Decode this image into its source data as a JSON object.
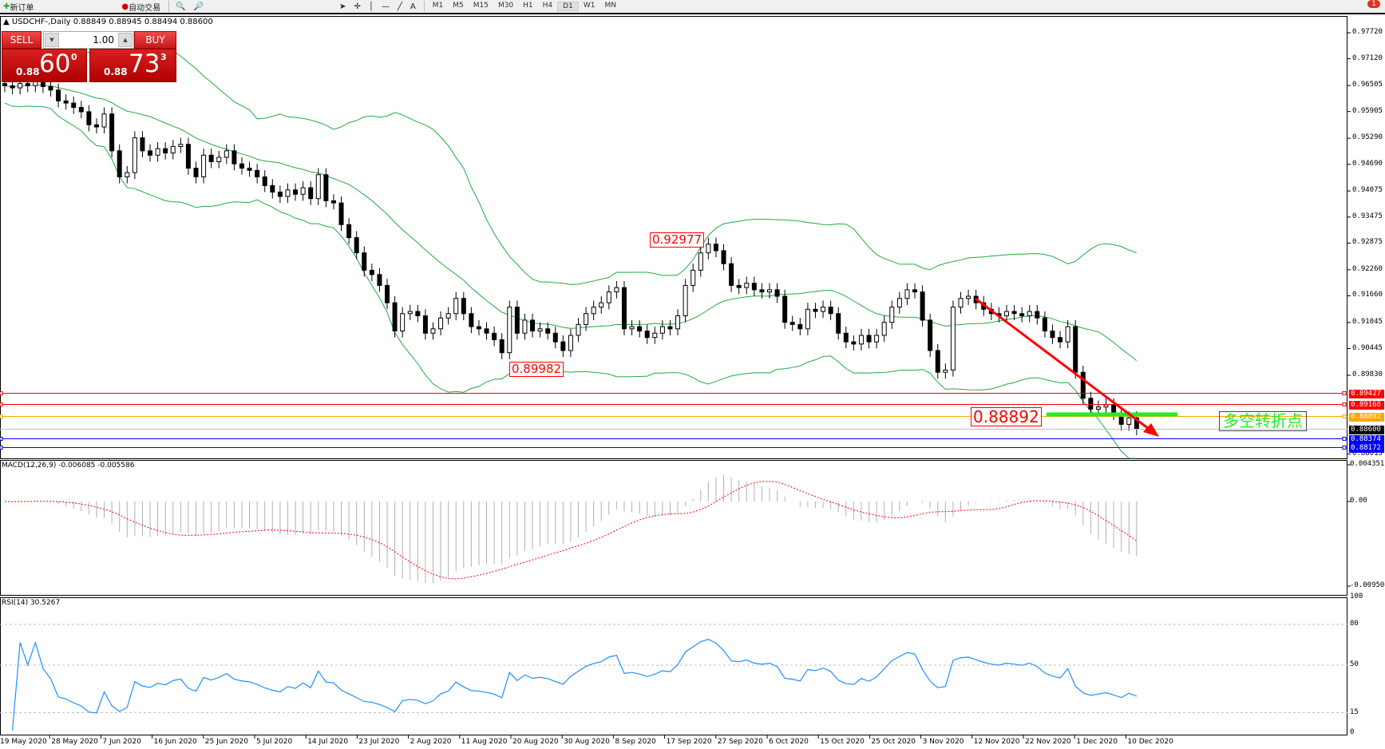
{
  "toolbar": {
    "new_order": "新订单",
    "auto_trading": "自动交易",
    "timeframes": [
      "M1",
      "M5",
      "M15",
      "M30",
      "H1",
      "H4",
      "D1",
      "W1",
      "MN"
    ],
    "active_timeframe": "D1",
    "notification_count": "1"
  },
  "chart": {
    "header": "USDCHF-,Daily  0.88849 0.88945 0.88494 0.88600",
    "symbol": "USDCHF-",
    "period": "Daily",
    "closes": [
      0.965,
      0.9645,
      0.9655,
      0.965,
      0.966,
      0.9648,
      0.964,
      0.9615,
      0.961,
      0.96,
      0.959,
      0.956,
      0.9555,
      0.9585,
      0.95,
      0.944,
      0.945,
      0.953,
      0.95,
      0.949,
      0.9505,
      0.9495,
      0.951,
      0.9515,
      0.946,
      0.944,
      0.949,
      0.9475,
      0.9485,
      0.95,
      0.947,
      0.946,
      0.9455,
      0.944,
      0.942,
      0.9405,
      0.9395,
      0.941,
      0.94,
      0.9415,
      0.939,
      0.9445,
      0.9385,
      0.938,
      0.933,
      0.93,
      0.9265,
      0.9225,
      0.9215,
      0.919,
      0.915,
      0.9085,
      0.9125,
      0.913,
      0.912,
      0.908,
      0.909,
      0.9115,
      0.9125,
      0.916,
      0.9125,
      0.9095,
      0.909,
      0.908,
      0.9065,
      0.9035,
      0.914,
      0.908,
      0.911,
      0.9085,
      0.909,
      0.908,
      0.906,
      0.904,
      0.9075,
      0.91,
      0.9125,
      0.914,
      0.915,
      0.9175,
      0.9185,
      0.909,
      0.9095,
      0.9085,
      0.907,
      0.908,
      0.9095,
      0.909,
      0.912,
      0.919,
      0.9225,
      0.9265,
      0.9285,
      0.927,
      0.924,
      0.919,
      0.9185,
      0.9195,
      0.918,
      0.9175,
      0.918,
      0.9165,
      0.9105,
      0.91,
      0.909,
      0.9135,
      0.913,
      0.914,
      0.9125,
      0.908,
      0.906,
      0.9055,
      0.9075,
      0.906,
      0.9075,
      0.9105,
      0.914,
      0.916,
      0.918,
      0.9175,
      0.911,
      0.904,
      0.899,
      0.8995,
      0.914,
      0.916,
      0.9165,
      0.915,
      0.9135,
      0.9125,
      0.912,
      0.913,
      0.9125,
      0.912,
      0.913,
      0.9115,
      0.9085,
      0.907,
      0.906,
      0.9095,
      0.899,
      0.893,
      0.8905,
      0.891,
      0.8915,
      0.8895,
      0.887,
      0.8885,
      0.886
    ],
    "price_axis": [
      "0.97720",
      "0.97120",
      "0.96505",
      "0.95905",
      "0.95290",
      "0.94690",
      "0.94075",
      "0.93475",
      "0.92875",
      "0.92260",
      "0.91660",
      "0.91045",
      "0.90445",
      "0.89830",
      "0.88015"
    ],
    "levels": [
      {
        "value": "0.89427",
        "color": "#ff0000"
      },
      {
        "value": "0.89168",
        "color": "#ff0000"
      },
      {
        "value": "0.88892",
        "color": "#ffa500"
      },
      {
        "value": "0.88600",
        "color": "#000000"
      },
      {
        "value": "0.88374",
        "color": "#0000ff"
      },
      {
        "value": "0.88172",
        "color": "#0000ff"
      }
    ],
    "annotations": {
      "high": "0.92977",
      "low": "0.89982",
      "pivot": "0.88892",
      "turn_text": "多空转折点"
    },
    "dates": [
      "19 May 2020",
      "28 May 2020",
      "7 Jun 2020",
      "16 Jun 2020",
      "25 Jun 2020",
      "5 Jul 2020",
      "14 Jul 2020",
      "23 Jul 2020",
      "2 Aug 2020",
      "11 Aug 2020",
      "20 Aug 2020",
      "30 Aug 2020",
      "8 Sep 2020",
      "17 Sep 2020",
      "27 Sep 2020",
      "6 Oct 2020",
      "15 Oct 2020",
      "25 Oct 2020",
      "3 Nov 2020",
      "12 Nov 2020",
      "22 Nov 2020",
      "1 Dec 2020",
      "10 Dec 2020"
    ]
  },
  "trade": {
    "sell_label": "SELL",
    "buy_label": "BUY",
    "lot": "1.00",
    "sell_prefix": "0.88",
    "sell_big": "60",
    "sell_sup": "0",
    "buy_prefix": "0.88",
    "buy_big": "73",
    "buy_sup": "3"
  },
  "macd": {
    "label": "MACD(12,26,9) -0.006085 -0.005586",
    "axis": [
      "0.004351",
      "0.00",
      "-0.009504"
    ]
  },
  "rsi": {
    "label": "RSI(14) 30.5267",
    "axis": [
      "100",
      "80",
      "50",
      "15",
      "0"
    ]
  },
  "colors": {
    "bands": "#22aa44",
    "signal": "#ff0000",
    "rsi": "#1e90ff",
    "histogram": "#b0b0b0"
  }
}
